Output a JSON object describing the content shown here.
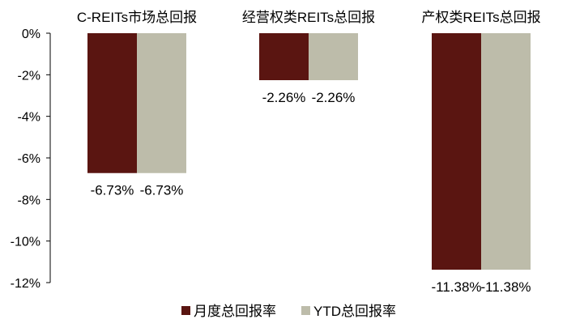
{
  "chart_data": {
    "type": "bar",
    "title": "",
    "categories": [
      "C-REITs市场总回报",
      "经营权类REITs总回报",
      "产权类REITs总回报"
    ],
    "series": [
      {
        "name": "月度总回报率",
        "values": [
          -6.73,
          -2.26,
          -11.38
        ],
        "labels": [
          "-6.73%",
          "-2.26%",
          "-11.38%"
        ],
        "color": "#5a1511"
      },
      {
        "name": "YTD总回报率",
        "values": [
          -6.73,
          -2.26,
          -11.38
        ],
        "labels": [
          "-6.73%",
          "-2.26%",
          "-11.38%"
        ],
        "color": "#bdbcaa"
      }
    ],
    "xlabel": "",
    "ylabel": "",
    "ylim": [
      -12,
      0
    ],
    "yticks": [
      0,
      -2,
      -4,
      -6,
      -8,
      -10,
      -12
    ],
    "ytick_labels": [
      "0%",
      "-2%",
      "-4%",
      "-6%",
      "-8%",
      "-10%",
      "-12%"
    ],
    "category_labels_position": "top",
    "grid": false,
    "legend": "bottom-center"
  }
}
